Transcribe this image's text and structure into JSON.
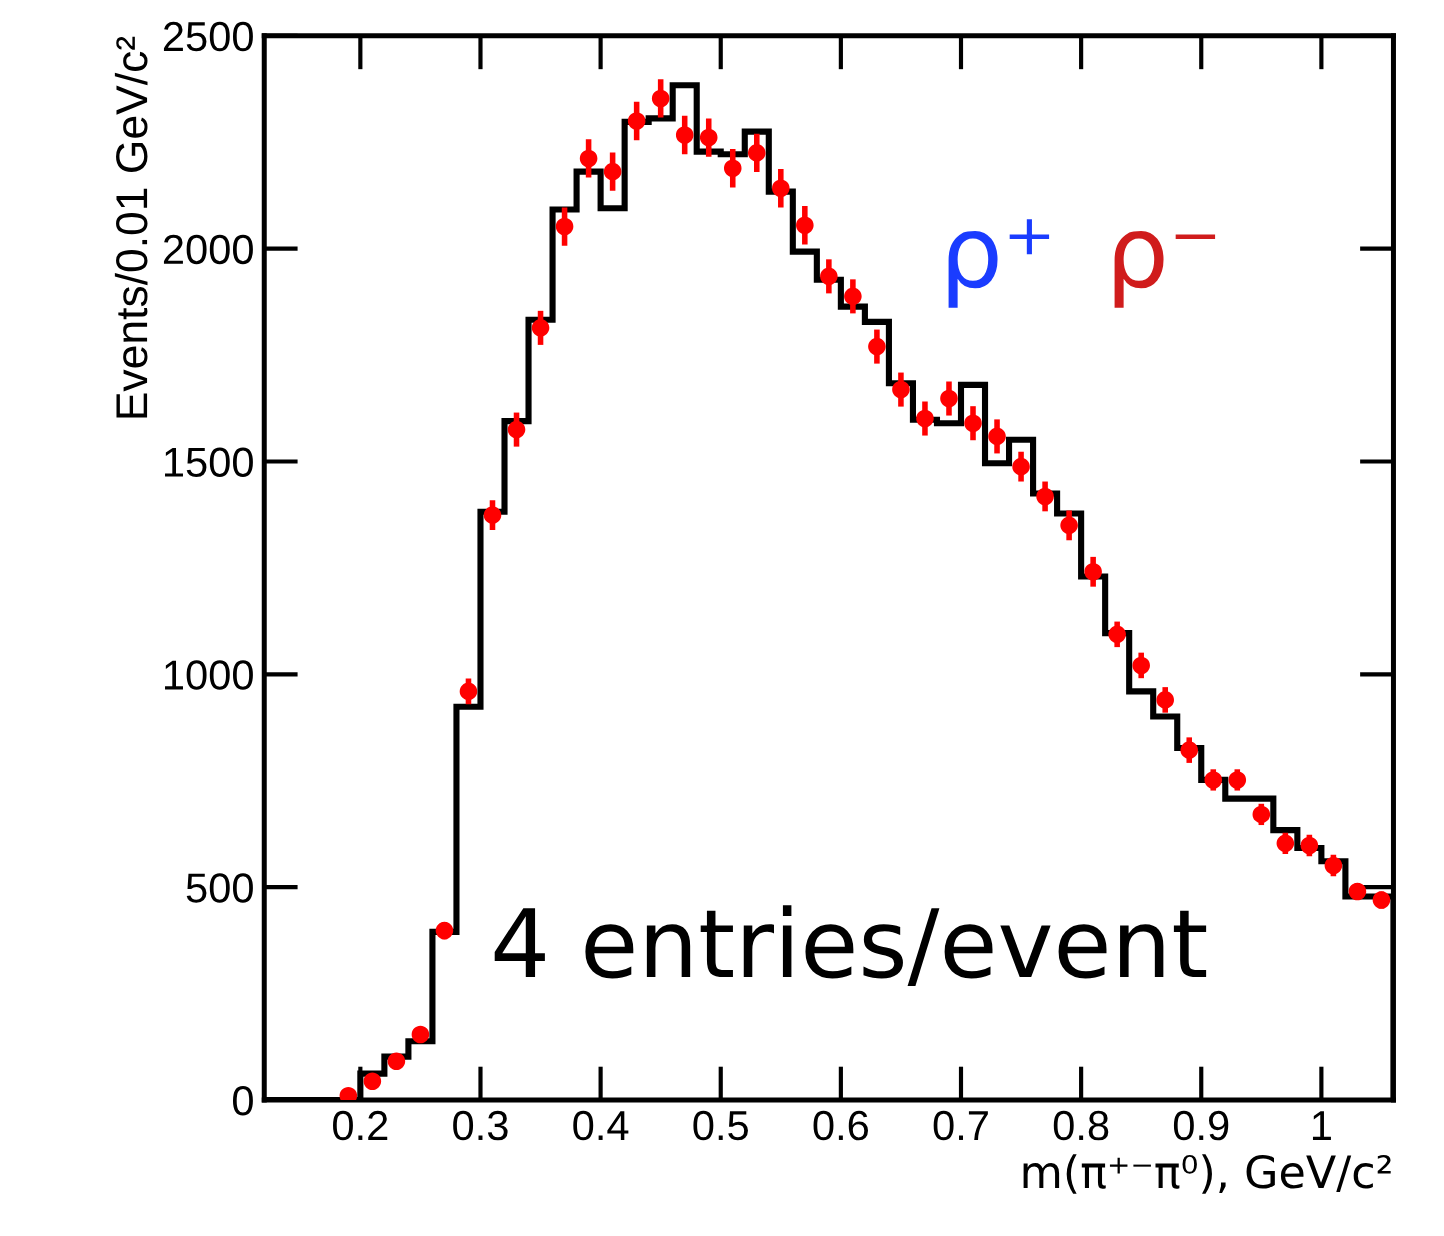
{
  "chart_data": {
    "type": "histogram",
    "xlabel": "m(π⁺⁻π⁰), GeV/c²",
    "ylabel": "Events/0.01 GeV/c²",
    "annotations": [
      "ρ⁺",
      "ρ⁻",
      "4 entries/event"
    ],
    "bins": [
      0.12,
      0.14,
      0.16,
      0.18,
      0.2,
      0.22,
      0.24,
      0.26,
      0.28,
      0.3,
      0.32,
      0.34,
      0.36,
      0.38,
      0.4,
      0.42,
      0.44,
      0.46,
      0.48,
      0.5,
      0.52,
      0.54,
      0.56,
      0.58,
      0.6,
      0.62,
      0.64,
      0.66,
      0.68,
      0.7,
      0.72,
      0.74,
      0.76,
      0.78,
      0.8,
      0.82,
      0.84,
      0.86,
      0.88,
      0.9,
      0.92,
      0.94,
      0.96,
      0.98,
      1.0,
      1.02,
      1.04,
      1.06
    ],
    "series": [
      {
        "type": "histogram",
        "color": "#000000",
        "values": [
          0,
          0,
          0,
          0,
          62,
          102,
          138,
          395,
          924,
          1382,
          1595,
          1833,
          2092,
          2181,
          2095,
          2298,
          2306,
          2384,
          2228,
          2222,
          2275,
          2134,
          1993,
          1927,
          1864,
          1828,
          1684,
          1598,
          1590,
          1680,
          1496,
          1551,
          1425,
          1378,
          1230,
          1097,
          960,
          901,
          827,
          752,
          708,
          708,
          634,
          592,
          561,
          478,
          478
        ]
      },
      {
        "type": "scatter",
        "color": "#ff0000",
        "marker": "circle",
        "x": [
          0.19,
          0.21,
          0.23,
          0.25,
          0.27,
          0.29,
          0.31,
          0.33,
          0.35,
          0.37,
          0.39,
          0.41,
          0.43,
          0.45,
          0.47,
          0.49,
          0.51,
          0.53,
          0.55,
          0.57,
          0.59,
          0.61,
          0.63,
          0.65,
          0.67,
          0.69,
          0.71,
          0.73,
          0.75,
          0.77,
          0.79,
          0.81,
          0.83,
          0.85,
          0.87,
          0.89,
          0.91,
          0.93,
          0.95,
          0.97,
          0.99,
          1.01,
          1.03,
          1.05
        ],
        "values": [
          10,
          44,
          91,
          154,
          398,
          960,
          1374,
          1575,
          1814,
          2052,
          2212,
          2181,
          2300,
          2353,
          2267,
          2261,
          2189,
          2225,
          2142,
          2055,
          1935,
          1888,
          1770,
          1669,
          1601,
          1648,
          1590,
          1559,
          1488,
          1418,
          1350,
          1241,
          1094,
          1021,
          940,
          822,
          752,
          752,
          671,
          603,
          598,
          551,
          490,
          470
        ],
        "errors": [
          8,
          10,
          12,
          15,
          20,
          30,
          35,
          40,
          40,
          45,
          45,
          45,
          45,
          45,
          45,
          45,
          45,
          45,
          45,
          45,
          40,
          40,
          40,
          40,
          40,
          40,
          40,
          40,
          35,
          35,
          35,
          35,
          30,
          30,
          30,
          30,
          25,
          25,
          25,
          25,
          25,
          25,
          20,
          20
        ]
      }
    ],
    "xlim": [
      0.12,
      1.06
    ],
    "ylim": [
      0,
      2500
    ],
    "xticks": [
      0.2,
      0.3,
      0.4,
      0.5,
      0.6,
      0.7,
      0.8,
      0.9,
      1
    ],
    "yticks": [
      0,
      500,
      1000,
      1500,
      2000,
      2500
    ],
    "grid": false,
    "legend": false
  }
}
